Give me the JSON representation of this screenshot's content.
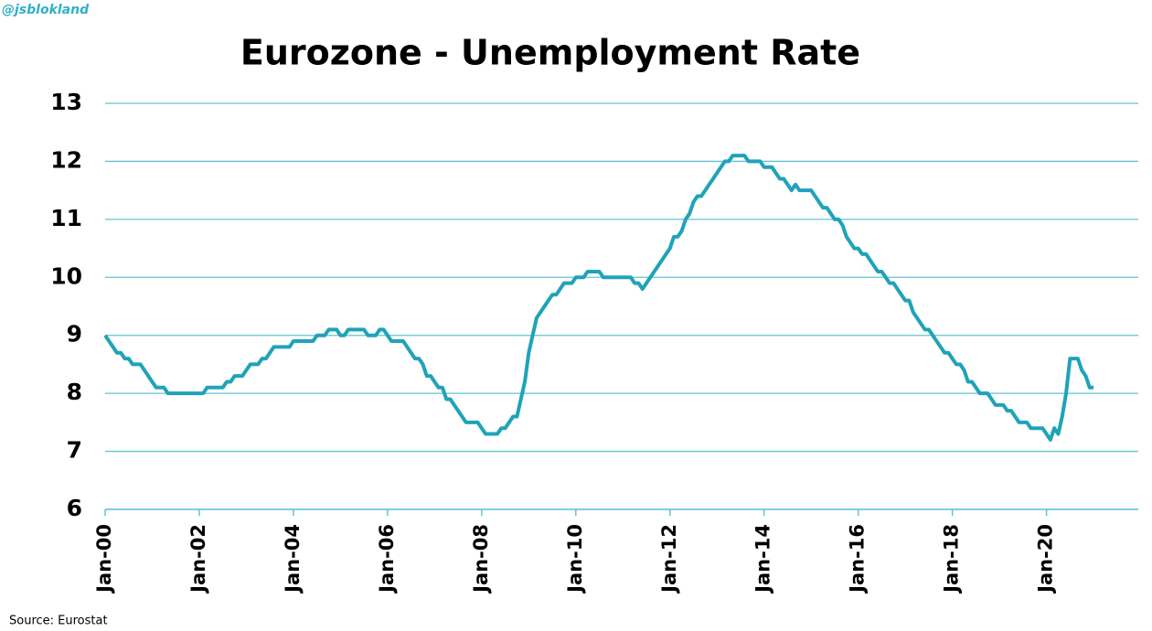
{
  "handle": "@jsblokland",
  "source": "Source: Eurostat",
  "chart_data": {
    "type": "line",
    "title": "Eurozone - Unemployment Rate",
    "x": [
      "Jan-00",
      null,
      null,
      null,
      null,
      null,
      null,
      null,
      null,
      null,
      null,
      null,
      null,
      null,
      null,
      null,
      null,
      null,
      null,
      null,
      null,
      null,
      null,
      null,
      "Jan-02",
      null,
      null,
      null,
      null,
      null,
      null,
      null,
      null,
      null,
      null,
      null,
      null,
      null,
      null,
      null,
      null,
      null,
      null,
      null,
      null,
      null,
      null,
      null,
      "Jan-04",
      null,
      null,
      null,
      null,
      null,
      null,
      null,
      null,
      null,
      null,
      null,
      null,
      null,
      null,
      null,
      null,
      null,
      null,
      null,
      null,
      null,
      null,
      null,
      "Jan-06",
      null,
      null,
      null,
      null,
      null,
      null,
      null,
      null,
      null,
      null,
      null,
      null,
      null,
      null,
      null,
      null,
      null,
      null,
      null,
      null,
      null,
      null,
      null,
      "Jan-08",
      null,
      null,
      null,
      null,
      null,
      null,
      null,
      null,
      null,
      null,
      null,
      null,
      null,
      null,
      null,
      null,
      null,
      null,
      null,
      null,
      null,
      null,
      null,
      "Jan-10",
      null,
      null,
      null,
      null,
      null,
      null,
      null,
      null,
      null,
      null,
      null,
      null,
      null,
      null,
      null,
      null,
      null,
      null,
      null,
      null,
      null,
      null,
      null,
      "Jan-12",
      null,
      null,
      null,
      null,
      null,
      null,
      null,
      null,
      null,
      null,
      null,
      null,
      null,
      null,
      null,
      null,
      null,
      null,
      null,
      null,
      null,
      null,
      null,
      "Jan-14",
      null,
      null,
      null,
      null,
      null,
      null,
      null,
      null,
      null,
      null,
      null,
      null,
      null,
      null,
      null,
      null,
      null,
      null,
      null,
      null,
      null,
      null,
      null,
      "Jan-16",
      null,
      null,
      null,
      null,
      null,
      null,
      null,
      null,
      null,
      null,
      null,
      null,
      null,
      null,
      null,
      null,
      null,
      null,
      null,
      null,
      null,
      null,
      null,
      "Jan-18",
      null,
      null,
      null,
      null,
      null,
      null,
      null,
      null,
      null,
      null,
      null,
      null,
      null,
      null,
      null,
      null,
      null,
      null,
      null,
      null,
      null,
      null,
      null,
      "Jan-20",
      null,
      null,
      null,
      null,
      null,
      null,
      null,
      null,
      null,
      null,
      null,
      null
    ],
    "values": [
      9.0,
      8.9,
      8.8,
      8.7,
      8.7,
      8.6,
      8.6,
      8.5,
      8.5,
      8.5,
      8.4,
      8.3,
      8.2,
      8.1,
      8.1,
      8.1,
      8.0,
      8.0,
      8.0,
      8.0,
      8.0,
      8.0,
      8.0,
      8.0,
      8.0,
      8.0,
      8.1,
      8.1,
      8.1,
      8.1,
      8.1,
      8.2,
      8.2,
      8.3,
      8.3,
      8.3,
      8.4,
      8.5,
      8.5,
      8.5,
      8.6,
      8.6,
      8.7,
      8.8,
      8.8,
      8.8,
      8.8,
      8.8,
      8.9,
      8.9,
      8.9,
      8.9,
      8.9,
      8.9,
      9.0,
      9.0,
      9.0,
      9.1,
      9.1,
      9.1,
      9.0,
      9.0,
      9.1,
      9.1,
      9.1,
      9.1,
      9.1,
      9.0,
      9.0,
      9.0,
      9.1,
      9.1,
      9.0,
      8.9,
      8.9,
      8.9,
      8.9,
      8.8,
      8.7,
      8.6,
      8.6,
      8.5,
      8.3,
      8.3,
      8.2,
      8.1,
      8.1,
      7.9,
      7.9,
      7.8,
      7.7,
      7.6,
      7.5,
      7.5,
      7.5,
      7.5,
      7.4,
      7.3,
      7.3,
      7.3,
      7.3,
      7.4,
      7.4,
      7.5,
      7.6,
      7.6,
      7.9,
      8.2,
      8.7,
      9.0,
      9.3,
      9.4,
      9.5,
      9.6,
      9.7,
      9.7,
      9.8,
      9.9,
      9.9,
      9.9,
      10.0,
      10.0,
      10.0,
      10.1,
      10.1,
      10.1,
      10.1,
      10.0,
      10.0,
      10.0,
      10.0,
      10.0,
      10.0,
      10.0,
      10.0,
      9.9,
      9.9,
      9.8,
      9.9,
      10.0,
      10.1,
      10.2,
      10.3,
      10.4,
      10.5,
      10.7,
      10.7,
      10.8,
      11.0,
      11.1,
      11.3,
      11.4,
      11.4,
      11.5,
      11.6,
      11.7,
      11.8,
      11.9,
      12.0,
      12.0,
      12.1,
      12.1,
      12.1,
      12.1,
      12.0,
      12.0,
      12.0,
      12.0,
      11.9,
      11.9,
      11.9,
      11.8,
      11.7,
      11.7,
      11.6,
      11.5,
      11.6,
      11.5,
      11.5,
      11.5,
      11.5,
      11.4,
      11.3,
      11.2,
      11.2,
      11.1,
      11.0,
      11.0,
      10.9,
      10.7,
      10.6,
      10.5,
      10.5,
      10.4,
      10.4,
      10.3,
      10.2,
      10.1,
      10.1,
      10.0,
      9.9,
      9.9,
      9.8,
      9.7,
      9.6,
      9.6,
      9.4,
      9.3,
      9.2,
      9.1,
      9.1,
      9.0,
      8.9,
      8.8,
      8.7,
      8.7,
      8.6,
      8.5,
      8.5,
      8.4,
      8.2,
      8.2,
      8.1,
      8.0,
      8.0,
      8.0,
      7.9,
      7.8,
      7.8,
      7.8,
      7.7,
      7.7,
      7.6,
      7.5,
      7.5,
      7.5,
      7.4,
      7.4,
      7.4,
      7.4,
      7.3,
      7.2,
      7.4,
      7.3,
      7.6,
      8.0,
      8.6,
      8.6,
      8.6,
      8.4,
      8.3,
      8.1,
      8.1
    ],
    "color": "#1fa3b8",
    "ylim": [
      6,
      13
    ],
    "yticks": [
      6,
      7,
      8,
      9,
      10,
      11,
      12,
      13
    ],
    "grid": true,
    "grid_color": "#62c3d3"
  }
}
